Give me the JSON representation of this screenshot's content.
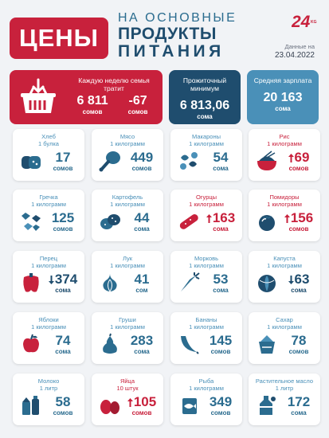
{
  "header": {
    "title": "ЦЕНЫ",
    "line1": "НА ОСНОВНЫЕ",
    "line2": "ПРОДУКТЫ",
    "line3": "ПИТАНИЯ",
    "logo_text": "24",
    "logo_suffix": "KG",
    "date_label": "Данные на",
    "date": "23.04.2022"
  },
  "summary": {
    "weekly_label": "Каждую неделю семья тратит",
    "weekly_value": "6 811",
    "weekly_unit": "сомов",
    "weekly_change": "-67",
    "weekly_change_unit": "сомов",
    "minimum_label": "Прожиточный минимум",
    "minimum_value": "6 813,06",
    "minimum_unit": "сома",
    "salary_label": "Средняя зарплата",
    "salary_value": "20 163",
    "salary_unit": "сома"
  },
  "colors": {
    "red": "#c8213c",
    "dark_blue": "#1f4d6e",
    "mid_blue": "#2b6c8f",
    "light_blue": "#4a90b8"
  },
  "products": [
    {
      "name": "Хлеб",
      "qty": "1 булка",
      "value": "17",
      "unit": "сомов",
      "icon": "bread-icon"
    },
    {
      "name": "Мясо",
      "qty": "1 килограмм",
      "value": "449",
      "unit": "сомов",
      "icon": "meat-icon"
    },
    {
      "name": "Макароны",
      "qty": "1 килограмм",
      "value": "54",
      "unit": "сома",
      "icon": "pasta-icon"
    },
    {
      "name": "Рис",
      "qty": "1 килограмм",
      "value": "69",
      "unit": "сомов",
      "icon": "rice-icon",
      "change": "up"
    },
    {
      "name": "Гречка",
      "qty": "1 килограмм",
      "value": "125",
      "unit": "сомов",
      "icon": "buckwheat-icon"
    },
    {
      "name": "Картофель",
      "qty": "1 килограмм",
      "value": "44",
      "unit": "сома",
      "icon": "potato-icon"
    },
    {
      "name": "Огурцы",
      "qty": "1 килограмм",
      "value": "163",
      "unit": "сома",
      "icon": "cucumber-icon",
      "change": "up"
    },
    {
      "name": "Помидоры",
      "qty": "1 килограмм",
      "value": "156",
      "unit": "сомов",
      "icon": "tomato-icon",
      "change": "up"
    },
    {
      "name": "Перец",
      "qty": "1 килограмм",
      "value": "374",
      "unit": "сома",
      "icon": "pepper-icon",
      "change": "down"
    },
    {
      "name": "Лук",
      "qty": "1 килограмм",
      "value": "41",
      "unit": "сом",
      "icon": "onion-icon"
    },
    {
      "name": "Морковь",
      "qty": "1 килограмм",
      "value": "53",
      "unit": "сома",
      "icon": "carrot-icon"
    },
    {
      "name": "Капуста",
      "qty": "1 килограмм",
      "value": "63",
      "unit": "сома",
      "icon": "cabbage-icon",
      "change": "down"
    },
    {
      "name": "Яблоки",
      "qty": "1 килограмм",
      "value": "74",
      "unit": "сома",
      "icon": "apple-icon"
    },
    {
      "name": "Груши",
      "qty": "1 килограмм",
      "value": "283",
      "unit": "сома",
      "icon": "pear-icon"
    },
    {
      "name": "Бананы",
      "qty": "1 килограмм",
      "value": "145",
      "unit": "сомов",
      "icon": "banana-icon"
    },
    {
      "name": "Сахар",
      "qty": "1 килограмм",
      "value": "78",
      "unit": "сомов",
      "icon": "sugar-icon"
    },
    {
      "name": "Молоко",
      "qty": "1 литр",
      "value": "58",
      "unit": "сомов",
      "icon": "milk-icon"
    },
    {
      "name": "Яйца",
      "qty": "10 штук",
      "value": "105",
      "unit": "сомов",
      "icon": "eggs-icon",
      "change": "up"
    },
    {
      "name": "Рыба",
      "qty": "1 килограмм",
      "value": "349",
      "unit": "сомов",
      "icon": "fish-icon"
    },
    {
      "name": "Растительное масло",
      "qty": "1 литр",
      "value": "172",
      "unit": "сома",
      "icon": "oil-icon"
    }
  ]
}
